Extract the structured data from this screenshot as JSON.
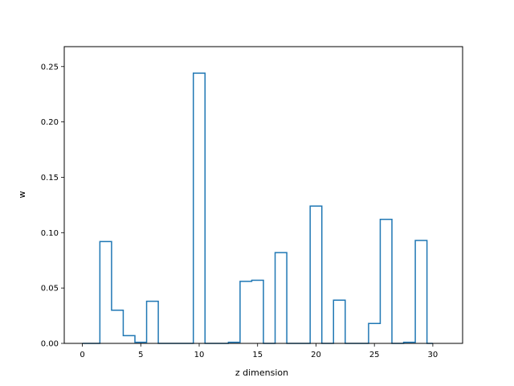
{
  "chart_data": {
    "type": "bar",
    "style": "step-outline",
    "xlabel": "z dimension",
    "ylabel": "w",
    "xlim": [
      -1.55,
      32.55
    ],
    "ylim": [
      0,
      0.268
    ],
    "xticks": [
      0,
      5,
      10,
      15,
      20,
      25,
      30
    ],
    "yticks": [
      0.0,
      0.05,
      0.1,
      0.15,
      0.2,
      0.25
    ],
    "grid": false,
    "line_color": "#1f77b4",
    "x": [
      0,
      1,
      2,
      3,
      4,
      5,
      6,
      7,
      8,
      9,
      10,
      11,
      12,
      13,
      14,
      15,
      16,
      17,
      18,
      19,
      20,
      21,
      22,
      23,
      24,
      25,
      26,
      27,
      28,
      29,
      30
    ],
    "values": [
      0.0,
      0.0,
      0.092,
      0.03,
      0.007,
      0.001,
      0.038,
      0.0,
      0.0,
      0.0,
      0.244,
      0.0,
      0.0,
      0.001,
      0.056,
      0.057,
      0.0,
      0.082,
      0.0,
      0.0,
      0.124,
      0.0,
      0.039,
      0.0,
      0.0,
      0.018,
      0.112,
      0.0,
      0.001,
      0.093,
      0.0
    ]
  }
}
